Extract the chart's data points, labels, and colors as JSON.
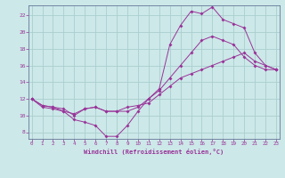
{
  "xlabel": "Windchill (Refroidissement éolien,°C)",
  "background_color": "#cce8e8",
  "grid_color": "#aacece",
  "line_color": "#993399",
  "spine_color": "#667799",
  "x_ticks": [
    0,
    1,
    2,
    3,
    4,
    5,
    6,
    7,
    8,
    9,
    10,
    11,
    12,
    13,
    14,
    15,
    16,
    17,
    18,
    19,
    20,
    21,
    22,
    23
  ],
  "y_ticks": [
    8,
    10,
    12,
    14,
    16,
    18,
    20,
    22
  ],
  "xlim": [
    -0.3,
    23.3
  ],
  "ylim": [
    7.2,
    23.2
  ],
  "line1_x": [
    0,
    1,
    2,
    3,
    4,
    5,
    6,
    7,
    8,
    9,
    10,
    11,
    12,
    13,
    14,
    15,
    16,
    17,
    18,
    19,
    20,
    21,
    22,
    23
  ],
  "line1_y": [
    12.0,
    11.2,
    11.0,
    10.8,
    10.0,
    10.8,
    11.0,
    10.5,
    10.5,
    10.5,
    11.0,
    12.0,
    13.0,
    14.5,
    16.0,
    17.5,
    19.0,
    19.5,
    19.0,
    18.5,
    17.0,
    16.0,
    15.5,
    15.5
  ],
  "line2_x": [
    0,
    1,
    2,
    3,
    4,
    5,
    6,
    7,
    8,
    9,
    10,
    11,
    12,
    13,
    14,
    15,
    16,
    17,
    18,
    19,
    20,
    21,
    22,
    23
  ],
  "line2_y": [
    12.0,
    11.2,
    11.0,
    10.5,
    9.5,
    9.2,
    8.8,
    7.5,
    7.5,
    8.8,
    10.5,
    12.0,
    13.2,
    18.5,
    20.8,
    22.5,
    22.2,
    23.0,
    21.5,
    21.0,
    20.5,
    17.5,
    16.0,
    15.5
  ],
  "line3_x": [
    0,
    1,
    2,
    3,
    4,
    5,
    6,
    7,
    8,
    9,
    10,
    11,
    12,
    13,
    14,
    15,
    16,
    17,
    18,
    19,
    20,
    21,
    22,
    23
  ],
  "line3_y": [
    12.0,
    11.0,
    10.8,
    10.5,
    10.2,
    10.8,
    11.0,
    10.5,
    10.5,
    11.0,
    11.2,
    11.5,
    12.5,
    13.5,
    14.5,
    15.0,
    15.5,
    16.0,
    16.5,
    17.0,
    17.5,
    16.5,
    16.0,
    15.5
  ]
}
